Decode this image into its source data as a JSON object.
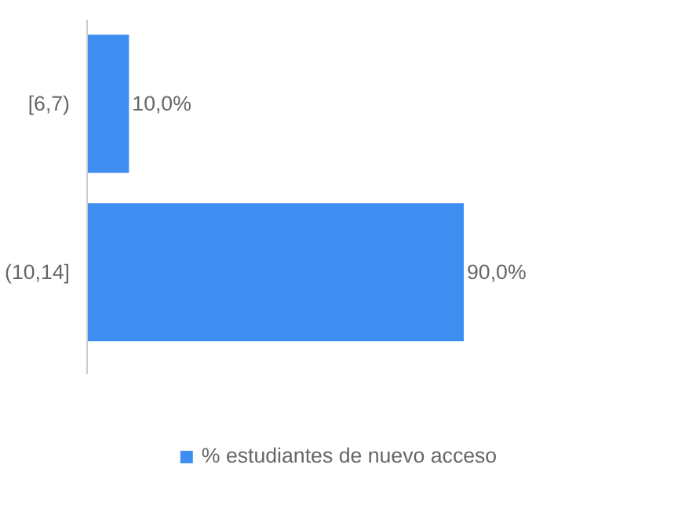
{
  "chart_data": {
    "type": "bar",
    "orientation": "horizontal",
    "categories": [
      "[6,7)",
      "(10,14]"
    ],
    "series": [
      {
        "name": "% estudiantes de nuevo acceso",
        "color": "#3d8ef0",
        "values": [
          10,
          90
        ],
        "value_labels": [
          "10,0%",
          "90,0%"
        ]
      }
    ],
    "tick_labels": "y",
    "legend": "bottom"
  }
}
